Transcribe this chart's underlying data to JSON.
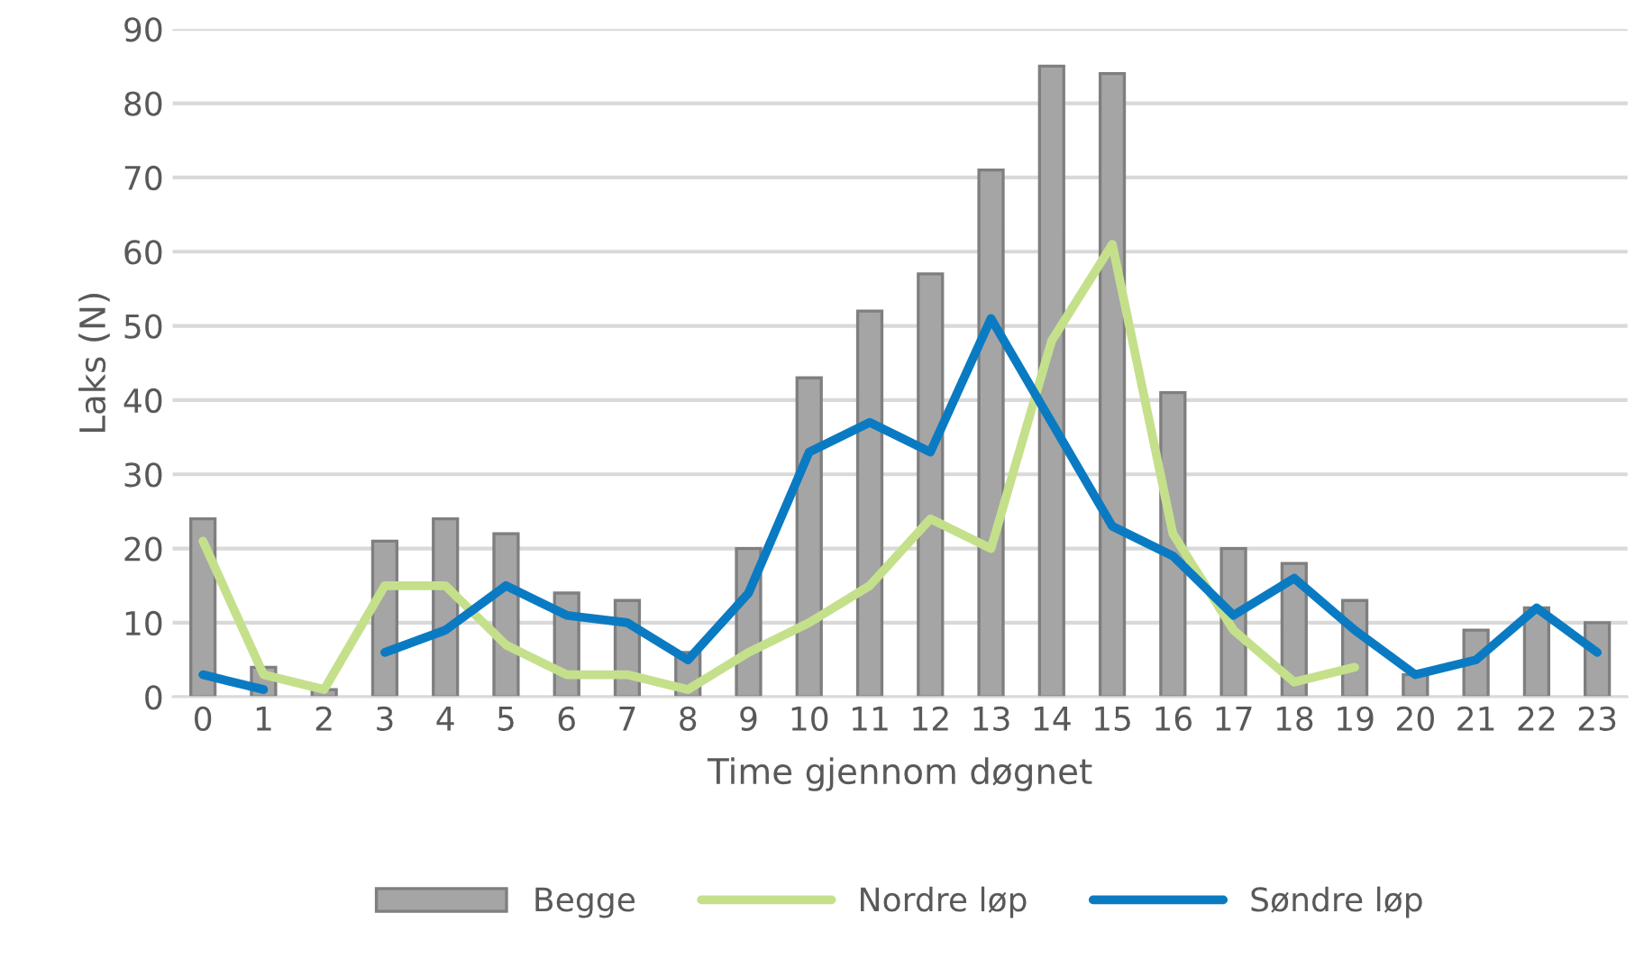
{
  "chart_data": {
    "type": "bar",
    "xlabel": "Time gjennom døgnet",
    "ylabel": "Laks (N)",
    "categories": [
      "0",
      "1",
      "2",
      "3",
      "4",
      "5",
      "6",
      "7",
      "8",
      "9",
      "10",
      "11",
      "12",
      "13",
      "14",
      "15",
      "16",
      "17",
      "18",
      "19",
      "20",
      "21",
      "22",
      "23"
    ],
    "series": [
      {
        "name": "Begge",
        "color": "#a5a5a5",
        "values": [
          24,
          4,
          1,
          21,
          24,
          22,
          14,
          13,
          6,
          20,
          43,
          52,
          57,
          71,
          85,
          84,
          41,
          20,
          18,
          13,
          3,
          9,
          12,
          10
        ]
      },
      {
        "name": "Nordre løp",
        "type": "line",
        "color": "#c5e08b",
        "values": [
          21,
          3,
          1,
          15,
          15,
          7,
          3,
          3,
          1,
          6,
          10,
          15,
          24,
          20,
          48,
          61,
          22,
          9,
          2,
          4,
          null,
          null,
          null,
          null
        ]
      },
      {
        "name": "Søndre løp",
        "type": "line",
        "color": "#0a7bc2",
        "values": [
          3,
          1,
          null,
          6,
          9,
          15,
          11,
          10,
          5,
          14,
          33,
          37,
          33,
          51,
          37,
          23,
          19,
          11,
          16,
          9,
          3,
          5,
          12,
          6
        ]
      }
    ],
    "ylim": [
      0,
      90
    ],
    "yticks": [
      0,
      10,
      20,
      30,
      40,
      50,
      60,
      70,
      80,
      90
    ],
    "grid": "y",
    "legend": "bottom"
  }
}
